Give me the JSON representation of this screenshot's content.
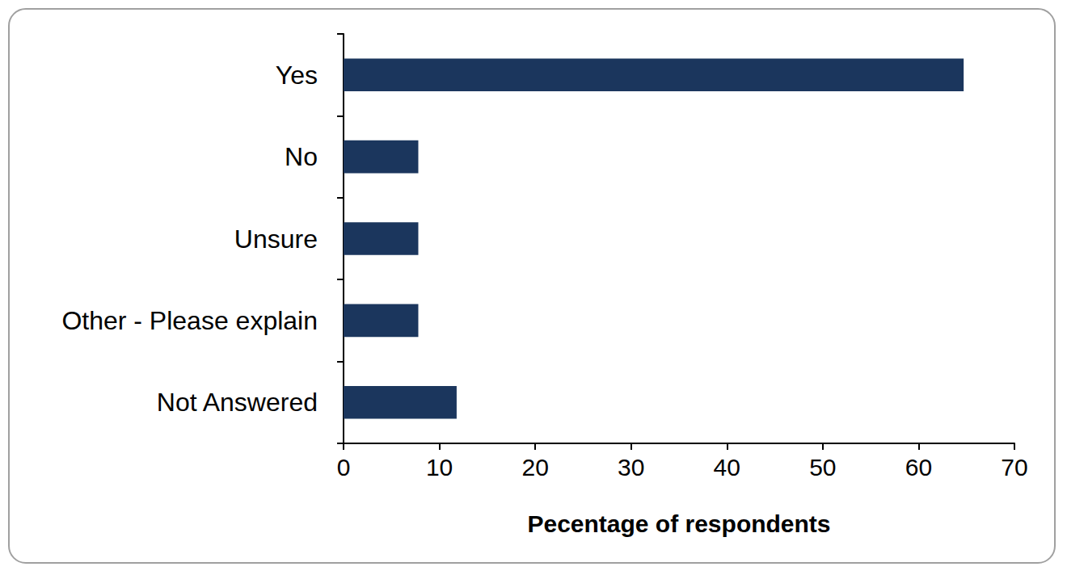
{
  "chart_data": {
    "type": "bar",
    "orientation": "horizontal",
    "categories": [
      "Yes",
      "No",
      "Unsure",
      "Other - Please explain",
      "Not Answered"
    ],
    "values": [
      64.7,
      7.8,
      7.8,
      7.8,
      11.8
    ],
    "color": "#1b365d",
    "xlabel": "Pecentage of respondents",
    "xlim": [
      0,
      70
    ],
    "xticks": [
      0,
      10,
      20,
      30,
      40,
      50,
      60,
      70
    ],
    "grid": false
  }
}
